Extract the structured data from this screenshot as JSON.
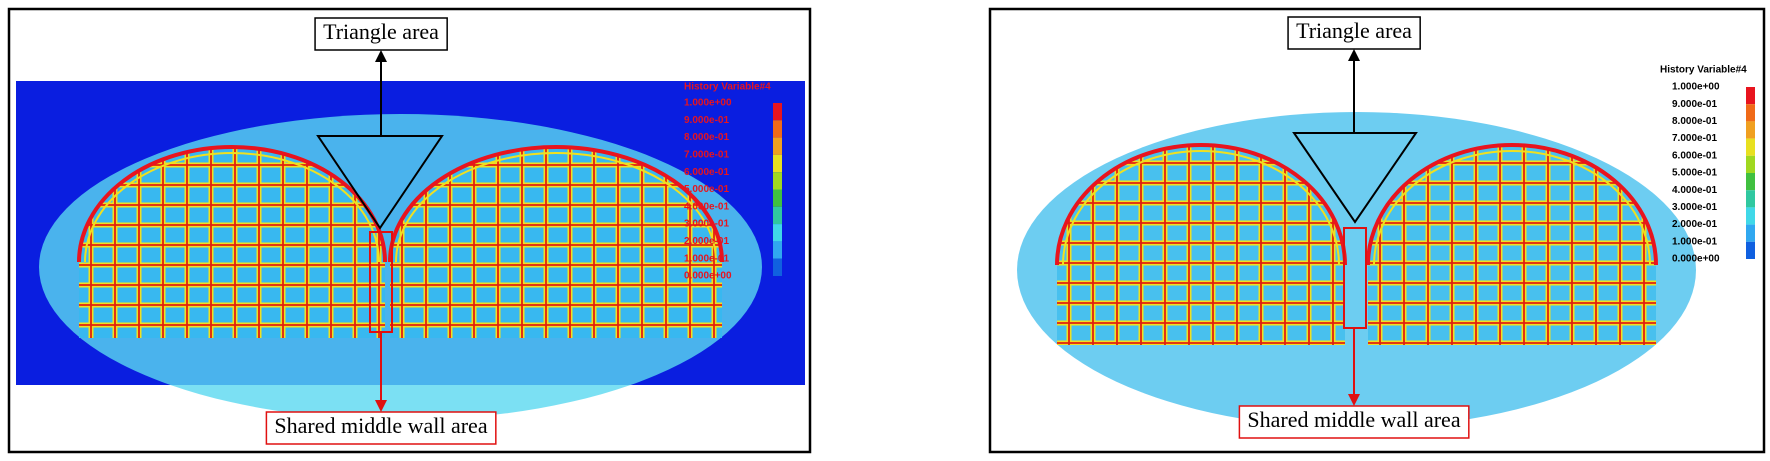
{
  "panels": [
    {
      "annotations": {
        "top": "Triangle area",
        "bottom": "Shared middle wall area"
      },
      "legend": {
        "title": "History Variable#4",
        "labels": [
          "1.000e+00",
          "9.000e-01",
          "8.000e-01",
          "7.000e-01",
          "6.000e-01",
          "5.000e-01",
          "4.000e-01",
          "3.000e-01",
          "2.000e-01",
          "1.000e-01",
          "0.000e+00"
        ]
      }
    },
    {
      "annotations": {
        "top": "Triangle area",
        "bottom": "Shared middle wall area"
      },
      "legend": {
        "title": "History Variable#4",
        "labels": [
          "1.000e+00",
          "9.000e-01",
          "8.000e-01",
          "7.000e-01",
          "6.000e-01",
          "5.000e-01",
          "4.000e-01",
          "3.000e-01",
          "2.000e-01",
          "1.000e-01",
          "0.000e+00"
        ]
      }
    }
  ]
}
